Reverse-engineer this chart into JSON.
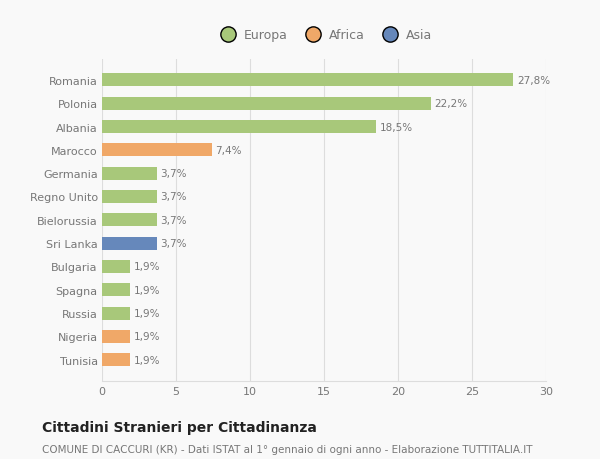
{
  "categories": [
    "Tunisia",
    "Nigeria",
    "Russia",
    "Spagna",
    "Bulgaria",
    "Sri Lanka",
    "Bielorussia",
    "Regno Unito",
    "Germania",
    "Marocco",
    "Albania",
    "Polonia",
    "Romania"
  ],
  "values": [
    1.9,
    1.9,
    1.9,
    1.9,
    1.9,
    3.7,
    3.7,
    3.7,
    3.7,
    7.4,
    18.5,
    22.2,
    27.8
  ],
  "colors": [
    "#f0a868",
    "#f0a868",
    "#a8c87a",
    "#a8c87a",
    "#a8c87a",
    "#6688bb",
    "#a8c87a",
    "#a8c87a",
    "#a8c87a",
    "#f0a868",
    "#a8c87a",
    "#a8c87a",
    "#a8c87a"
  ],
  "labels": [
    "1,9%",
    "1,9%",
    "1,9%",
    "1,9%",
    "1,9%",
    "3,7%",
    "3,7%",
    "3,7%",
    "3,7%",
    "7,4%",
    "18,5%",
    "22,2%",
    "27,8%"
  ],
  "legend_labels": [
    "Europa",
    "Africa",
    "Asia"
  ],
  "legend_colors": [
    "#a8c87a",
    "#f0a868",
    "#6688bb"
  ],
  "title": "Cittadini Stranieri per Cittadinanza",
  "subtitle": "COMUNE DI CACCURI (KR) - Dati ISTAT al 1° gennaio di ogni anno - Elaborazione TUTTITALIA.IT",
  "xlim": [
    0,
    30
  ],
  "xticks": [
    0,
    5,
    10,
    15,
    20,
    25,
    30
  ],
  "bar_height": 0.55,
  "background_color": "#f9f9f9",
  "grid_color": "#dddddd",
  "text_color": "#777777",
  "title_color": "#222222",
  "title_fontsize": 10,
  "subtitle_fontsize": 7.5,
  "label_fontsize": 7.5,
  "tick_fontsize": 8,
  "legend_fontsize": 9
}
